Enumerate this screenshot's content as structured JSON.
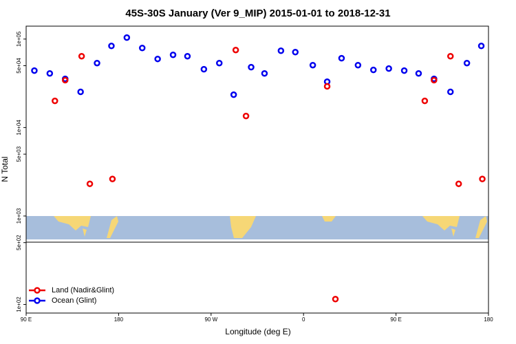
{
  "chart_data": {
    "type": "scatter",
    "title": "45S-30S January (Ver 9_MIP)   2015-01-01 to 2018-12-31",
    "xlabel": "Longitude (deg E)",
    "ylabel": "N Total",
    "log_y": true,
    "legend": "lower left",
    "xlim": [
      90,
      540
    ],
    "xticks": [
      {
        "value": 90,
        "label": "90 E"
      },
      180,
      {
        "value": 270,
        "label": "90 W"
      },
      {
        "value": 360,
        "label": "0"
      },
      {
        "value": 450,
        "label": "90 E"
      },
      {
        "value": 540,
        "label": "180"
      }
    ],
    "ylim": [
      80,
      140000
    ],
    "yticks": [
      {
        "value": 100,
        "label": "1e+02"
      },
      {
        "value": 500,
        "label": "5e+02"
      },
      {
        "value": 1000,
        "label": "1e+03"
      },
      {
        "value": 5000,
        "label": "5e+03"
      },
      {
        "value": 10000,
        "label": "1e+04"
      },
      {
        "value": 50000,
        "label": "5e+04"
      },
      {
        "value": 100000,
        "label": "1e+05"
      }
    ],
    "series": [
      {
        "name": "Ocean (Glint)",
        "color": "#0000ee",
        "x": [
          98,
          113,
          128,
          143,
          159,
          173,
          188,
          203,
          218,
          233,
          247,
          263,
          278,
          292,
          309,
          322,
          338,
          352,
          369,
          383,
          397,
          413,
          428,
          443,
          458,
          472,
          487,
          503,
          519,
          533
        ],
        "values": [
          44000,
          40900,
          35500,
          25300,
          53500,
          83600,
          104000,
          79300,
          59600,
          66300,
          64000,
          45600,
          53500,
          23500,
          48100,
          40900,
          73800,
          71200,
          50700,
          33000,
          60700,
          50700,
          44800,
          46400,
          44000,
          40900,
          35500,
          25300,
          53500,
          83600
        ]
      },
      {
        "name": "Land (Nadir&Glint)",
        "color": "#ee0000",
        "x": [
          118,
          128,
          144,
          152,
          174,
          294,
          304,
          383,
          391,
          478,
          487,
          503,
          511,
          534
        ],
        "values": [
          20000,
          34300,
          64000,
          2310,
          2620,
          75200,
          13500,
          29200,
          115,
          20000,
          34300,
          64000,
          2310,
          2620
        ]
      }
    ]
  }
}
